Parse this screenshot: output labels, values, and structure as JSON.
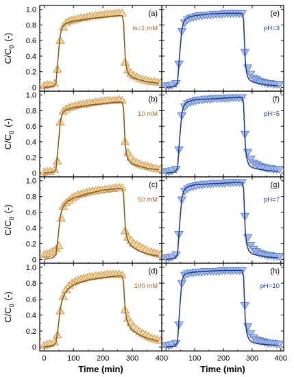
{
  "figure": {
    "ylabel_main": "C/C",
    "ylabel_sub": "0",
    "ylabel_unit": "(-)",
    "xlabel": "Time (min)",
    "left_x_ticks": [
      "0",
      "100",
      "200",
      "300",
      "400"
    ],
    "right_x_ticks": [
      "100",
      "200",
      "300",
      "400"
    ],
    "y_ticks": [
      "0",
      "0.2",
      "0.4",
      "0.6",
      "0.8",
      "1.0"
    ]
  },
  "colors": {
    "ionic_strength_series": "#8B5A1B",
    "ionic_strength_marker_fill": "#F2D5A5",
    "ionic_strength_marker_edge": "#C79650",
    "ionic_strength_label": "#A06820",
    "ph_series": "#1F3A93",
    "ph_marker_fill": "#A9BFEA",
    "ph_marker_edge": "#5A7CC8",
    "ph_label": "#1F3A93"
  },
  "chart_data": [
    {
      "type": "line",
      "panel_id": "(a)",
      "annotation": "Is=1 mM",
      "column": "left",
      "marker": "triangle-up",
      "xlim": [
        -15,
        400
      ],
      "ylim": [
        -0.05,
        1.05
      ],
      "observed": {
        "x": [
          0,
          10,
          20,
          35,
          45,
          55,
          65,
          75,
          85,
          95,
          105,
          115,
          125,
          135,
          145,
          155,
          165,
          175,
          185,
          195,
          205,
          215,
          225,
          235,
          245,
          255,
          265,
          275,
          285,
          295,
          305,
          315,
          325,
          335,
          345,
          355,
          365,
          375,
          385,
          395
        ],
        "y": [
          0.02,
          0.03,
          0.03,
          0.05,
          0.23,
          0.6,
          0.77,
          0.83,
          0.85,
          0.86,
          0.87,
          0.88,
          0.89,
          0.89,
          0.9,
          0.91,
          0.91,
          0.92,
          0.92,
          0.93,
          0.93,
          0.94,
          0.94,
          0.94,
          0.95,
          0.95,
          0.95,
          0.32,
          0.22,
          0.18,
          0.15,
          0.13,
          0.11,
          0.1,
          0.09,
          0.08,
          0.07,
          0.07,
          0.06,
          0.06
        ]
      },
      "model": {
        "x": [
          0,
          30,
          40,
          48,
          55,
          62,
          70,
          80,
          100,
          150,
          200,
          250,
          265,
          270,
          273,
          276,
          280,
          285,
          290,
          300,
          320,
          350,
          390
        ],
        "y": [
          0.0,
          0.01,
          0.05,
          0.4,
          0.68,
          0.77,
          0.81,
          0.83,
          0.85,
          0.88,
          0.9,
          0.92,
          0.92,
          0.85,
          0.6,
          0.38,
          0.25,
          0.19,
          0.16,
          0.13,
          0.1,
          0.07,
          0.05
        ]
      }
    },
    {
      "type": "line",
      "panel_id": "(b)",
      "annotation": "10 mM",
      "column": "left",
      "marker": "triangle-up",
      "xlim": [
        -15,
        400
      ],
      "ylim": [
        -0.05,
        1.05
      ],
      "observed": {
        "x": [
          0,
          10,
          20,
          35,
          45,
          55,
          65,
          75,
          85,
          95,
          105,
          115,
          125,
          135,
          145,
          155,
          165,
          175,
          185,
          195,
          205,
          215,
          225,
          235,
          245,
          255,
          265,
          275,
          285,
          295,
          305,
          315,
          325,
          335,
          345,
          355,
          365,
          375,
          385,
          395
        ],
        "y": [
          0.01,
          0.02,
          0.02,
          0.04,
          0.15,
          0.65,
          0.79,
          0.82,
          0.84,
          0.85,
          0.86,
          0.87,
          0.88,
          0.88,
          0.89,
          0.9,
          0.9,
          0.91,
          0.91,
          0.92,
          0.92,
          0.93,
          0.93,
          0.93,
          0.93,
          0.94,
          0.93,
          0.4,
          0.26,
          0.2,
          0.15,
          0.13,
          0.11,
          0.1,
          0.09,
          0.08,
          0.07,
          0.06,
          0.05,
          0.05
        ]
      },
      "model": {
        "x": [
          0,
          30,
          40,
          48,
          55,
          62,
          70,
          80,
          100,
          150,
          200,
          250,
          265,
          270,
          273,
          276,
          280,
          285,
          290,
          300,
          320,
          350,
          390
        ],
        "y": [
          0.0,
          0.01,
          0.04,
          0.35,
          0.66,
          0.76,
          0.8,
          0.82,
          0.84,
          0.87,
          0.89,
          0.91,
          0.91,
          0.84,
          0.58,
          0.36,
          0.24,
          0.18,
          0.15,
          0.12,
          0.09,
          0.06,
          0.04
        ]
      }
    },
    {
      "type": "line",
      "panel_id": "(c)",
      "annotation": "50 mM",
      "column": "left",
      "marker": "triangle-up",
      "xlim": [
        -15,
        400
      ],
      "ylim": [
        -0.05,
        1.05
      ],
      "observed": {
        "x": [
          0,
          10,
          20,
          30,
          40,
          50,
          58,
          65,
          75,
          85,
          95,
          105,
          115,
          125,
          135,
          145,
          155,
          165,
          175,
          185,
          195,
          205,
          215,
          225,
          235,
          245,
          255,
          265,
          275,
          285,
          295,
          305,
          315,
          325,
          335,
          345,
          355,
          365,
          375,
          385,
          395
        ],
        "y": [
          0.06,
          0.07,
          0.08,
          0.1,
          0.13,
          0.17,
          0.52,
          0.67,
          0.72,
          0.75,
          0.78,
          0.8,
          0.82,
          0.83,
          0.84,
          0.85,
          0.86,
          0.87,
          0.87,
          0.88,
          0.88,
          0.89,
          0.89,
          0.9,
          0.9,
          0.91,
          0.91,
          0.91,
          0.36,
          0.28,
          0.24,
          0.2,
          0.18,
          0.16,
          0.14,
          0.12,
          0.1,
          0.09,
          0.08,
          0.07,
          0.06
        ]
      },
      "model": {
        "x": [
          0,
          30,
          40,
          48,
          55,
          62,
          70,
          80,
          100,
          150,
          200,
          250,
          265,
          270,
          273,
          276,
          280,
          285,
          290,
          300,
          320,
          350,
          390
        ],
        "y": [
          0.0,
          0.02,
          0.06,
          0.3,
          0.55,
          0.65,
          0.7,
          0.74,
          0.78,
          0.84,
          0.88,
          0.9,
          0.9,
          0.84,
          0.62,
          0.42,
          0.3,
          0.24,
          0.2,
          0.16,
          0.11,
          0.07,
          0.04
        ]
      }
    },
    {
      "type": "line",
      "panel_id": "(d)",
      "annotation": "100 mM",
      "column": "left",
      "marker": "triangle-up",
      "xlim": [
        -15,
        400
      ],
      "ylim": [
        -0.05,
        1.05
      ],
      "observed": {
        "x": [
          0,
          10,
          20,
          35,
          45,
          55,
          65,
          75,
          85,
          95,
          105,
          115,
          125,
          135,
          145,
          155,
          165,
          175,
          185,
          195,
          205,
          215,
          225,
          235,
          245,
          255,
          265,
          275,
          285,
          295,
          305,
          315,
          325,
          335,
          345,
          355,
          365,
          375,
          385,
          395
        ],
        "y": [
          0.02,
          0.03,
          0.04,
          0.06,
          0.15,
          0.45,
          0.63,
          0.72,
          0.77,
          0.8,
          0.82,
          0.84,
          0.85,
          0.86,
          0.87,
          0.88,
          0.88,
          0.89,
          0.89,
          0.9,
          0.9,
          0.91,
          0.91,
          0.91,
          0.91,
          0.91,
          0.9,
          0.46,
          0.36,
          0.3,
          0.25,
          0.22,
          0.19,
          0.17,
          0.15,
          0.13,
          0.11,
          0.1,
          0.09,
          0.08
        ]
      },
      "model": {
        "x": [
          0,
          30,
          40,
          48,
          55,
          62,
          70,
          80,
          100,
          150,
          200,
          250,
          265,
          270,
          273,
          276,
          280,
          285,
          290,
          300,
          320,
          350,
          390
        ],
        "y": [
          0.0,
          0.02,
          0.05,
          0.25,
          0.48,
          0.6,
          0.67,
          0.72,
          0.78,
          0.84,
          0.87,
          0.89,
          0.89,
          0.82,
          0.62,
          0.46,
          0.36,
          0.3,
          0.26,
          0.21,
          0.16,
          0.11,
          0.07
        ]
      }
    },
    {
      "type": "line",
      "panel_id": "(e)",
      "annotation": "pH=3",
      "column": "right",
      "marker": "triangle-down",
      "xlim": [
        -15,
        410
      ],
      "ylim": [
        -0.05,
        1.05
      ],
      "observed": {
        "x": [
          0,
          10,
          20,
          35,
          45,
          55,
          65,
          75,
          85,
          95,
          105,
          115,
          125,
          135,
          145,
          155,
          165,
          175,
          185,
          195,
          205,
          215,
          225,
          235,
          245,
          255,
          265,
          275,
          285,
          295,
          305,
          315,
          325,
          335,
          345,
          355,
          365,
          375,
          385,
          395
        ],
        "y": [
          0.02,
          0.02,
          0.03,
          0.05,
          0.3,
          0.72,
          0.83,
          0.87,
          0.89,
          0.9,
          0.91,
          0.92,
          0.92,
          0.93,
          0.93,
          0.93,
          0.94,
          0.94,
          0.94,
          0.94,
          0.95,
          0.95,
          0.95,
          0.95,
          0.95,
          0.95,
          0.95,
          0.45,
          0.25,
          0.17,
          0.12,
          0.1,
          0.08,
          0.07,
          0.06,
          0.05,
          0.05,
          0.04,
          0.04,
          0.04
        ]
      },
      "model": {
        "x": [
          0,
          30,
          40,
          48,
          55,
          62,
          70,
          80,
          100,
          150,
          200,
          250,
          265,
          270,
          273,
          276,
          280,
          285,
          290,
          300,
          320,
          350,
          390
        ],
        "y": [
          0.0,
          0.01,
          0.06,
          0.45,
          0.74,
          0.84,
          0.88,
          0.9,
          0.92,
          0.94,
          0.95,
          0.95,
          0.95,
          0.88,
          0.6,
          0.35,
          0.2,
          0.13,
          0.1,
          0.07,
          0.05,
          0.03,
          0.02
        ]
      }
    },
    {
      "type": "line",
      "panel_id": "(f)",
      "annotation": "pH=5",
      "column": "right",
      "marker": "triangle-down",
      "xlim": [
        -15,
        410
      ],
      "ylim": [
        -0.05,
        1.05
      ],
      "observed": {
        "x": [
          0,
          10,
          20,
          35,
          45,
          55,
          65,
          75,
          85,
          95,
          105,
          115,
          125,
          135,
          145,
          155,
          165,
          175,
          185,
          195,
          205,
          215,
          225,
          235,
          245,
          255,
          265,
          275,
          285,
          295,
          305,
          315,
          325,
          335,
          345,
          355,
          365,
          375,
          385,
          395
        ],
        "y": [
          0.02,
          0.02,
          0.03,
          0.05,
          0.3,
          0.74,
          0.85,
          0.89,
          0.91,
          0.92,
          0.93,
          0.94,
          0.94,
          0.95,
          0.95,
          0.95,
          0.96,
          0.96,
          0.96,
          0.96,
          0.96,
          0.96,
          0.97,
          0.97,
          0.97,
          0.97,
          0.97,
          0.5,
          0.27,
          0.18,
          0.13,
          0.11,
          0.09,
          0.08,
          0.07,
          0.06,
          0.06,
          0.05,
          0.05,
          0.05
        ]
      },
      "model": {
        "x": [
          0,
          30,
          40,
          48,
          55,
          62,
          70,
          80,
          100,
          150,
          200,
          250,
          265,
          270,
          273,
          276,
          280,
          285,
          290,
          300,
          320,
          350,
          390
        ],
        "y": [
          0.0,
          0.01,
          0.06,
          0.47,
          0.76,
          0.86,
          0.9,
          0.92,
          0.94,
          0.95,
          0.96,
          0.97,
          0.97,
          0.9,
          0.62,
          0.36,
          0.21,
          0.14,
          0.1,
          0.07,
          0.05,
          0.03,
          0.02
        ]
      }
    },
    {
      "type": "line",
      "panel_id": "(g)",
      "annotation": "pH=7",
      "column": "right",
      "marker": "triangle-down",
      "xlim": [
        -15,
        410
      ],
      "ylim": [
        -0.05,
        1.05
      ],
      "observed": {
        "x": [
          0,
          10,
          20,
          35,
          45,
          55,
          65,
          75,
          85,
          95,
          105,
          115,
          125,
          135,
          145,
          155,
          165,
          175,
          185,
          195,
          205,
          215,
          225,
          235,
          245,
          255,
          265,
          275,
          285,
          295,
          305,
          315,
          325,
          335,
          345,
          355,
          365,
          375,
          385,
          395
        ],
        "y": [
          0.02,
          0.02,
          0.03,
          0.06,
          0.32,
          0.76,
          0.87,
          0.9,
          0.92,
          0.93,
          0.94,
          0.95,
          0.95,
          0.96,
          0.96,
          0.96,
          0.97,
          0.97,
          0.97,
          0.97,
          0.97,
          0.98,
          0.98,
          0.98,
          0.98,
          0.98,
          0.98,
          0.55,
          0.28,
          0.18,
          0.13,
          0.1,
          0.08,
          0.07,
          0.06,
          0.05,
          0.05,
          0.04,
          0.04,
          0.04
        ]
      },
      "model": {
        "x": [
          0,
          30,
          40,
          48,
          55,
          62,
          70,
          80,
          100,
          150,
          200,
          250,
          265,
          270,
          273,
          276,
          280,
          285,
          290,
          300,
          320,
          350,
          390
        ],
        "y": [
          0.0,
          0.01,
          0.06,
          0.48,
          0.78,
          0.87,
          0.91,
          0.93,
          0.95,
          0.96,
          0.97,
          0.98,
          0.98,
          0.91,
          0.63,
          0.36,
          0.21,
          0.14,
          0.1,
          0.07,
          0.05,
          0.03,
          0.02
        ]
      }
    },
    {
      "type": "line",
      "panel_id": "(h)",
      "annotation": "pH=10",
      "column": "right",
      "marker": "triangle-down",
      "xlim": [
        -15,
        410
      ],
      "ylim": [
        -0.05,
        1.05
      ],
      "observed": {
        "x": [
          0,
          10,
          20,
          35,
          45,
          55,
          65,
          75,
          85,
          95,
          105,
          115,
          125,
          135,
          145,
          155,
          165,
          175,
          185,
          195,
          205,
          215,
          225,
          235,
          245,
          255,
          265,
          275,
          285,
          295,
          305,
          315,
          325,
          335,
          345,
          355,
          365,
          375,
          385,
          395
        ],
        "y": [
          0.02,
          0.02,
          0.03,
          0.05,
          0.28,
          0.8,
          0.9,
          0.92,
          0.93,
          0.93,
          0.94,
          0.94,
          0.94,
          0.95,
          0.95,
          0.95,
          0.95,
          0.95,
          0.95,
          0.96,
          0.96,
          0.96,
          0.96,
          0.96,
          0.96,
          0.96,
          0.96,
          0.52,
          0.26,
          0.17,
          0.12,
          0.09,
          0.08,
          0.07,
          0.06,
          0.05,
          0.05,
          0.05,
          0.04,
          0.04
        ]
      },
      "model": {
        "x": [
          0,
          30,
          40,
          48,
          55,
          62,
          70,
          80,
          100,
          150,
          200,
          250,
          265,
          270,
          273,
          276,
          280,
          285,
          290,
          300,
          320,
          350,
          390
        ],
        "y": [
          0.0,
          0.01,
          0.06,
          0.5,
          0.82,
          0.9,
          0.92,
          0.93,
          0.94,
          0.95,
          0.96,
          0.96,
          0.96,
          0.89,
          0.6,
          0.34,
          0.2,
          0.13,
          0.09,
          0.06,
          0.04,
          0.03,
          0.02
        ]
      }
    }
  ]
}
